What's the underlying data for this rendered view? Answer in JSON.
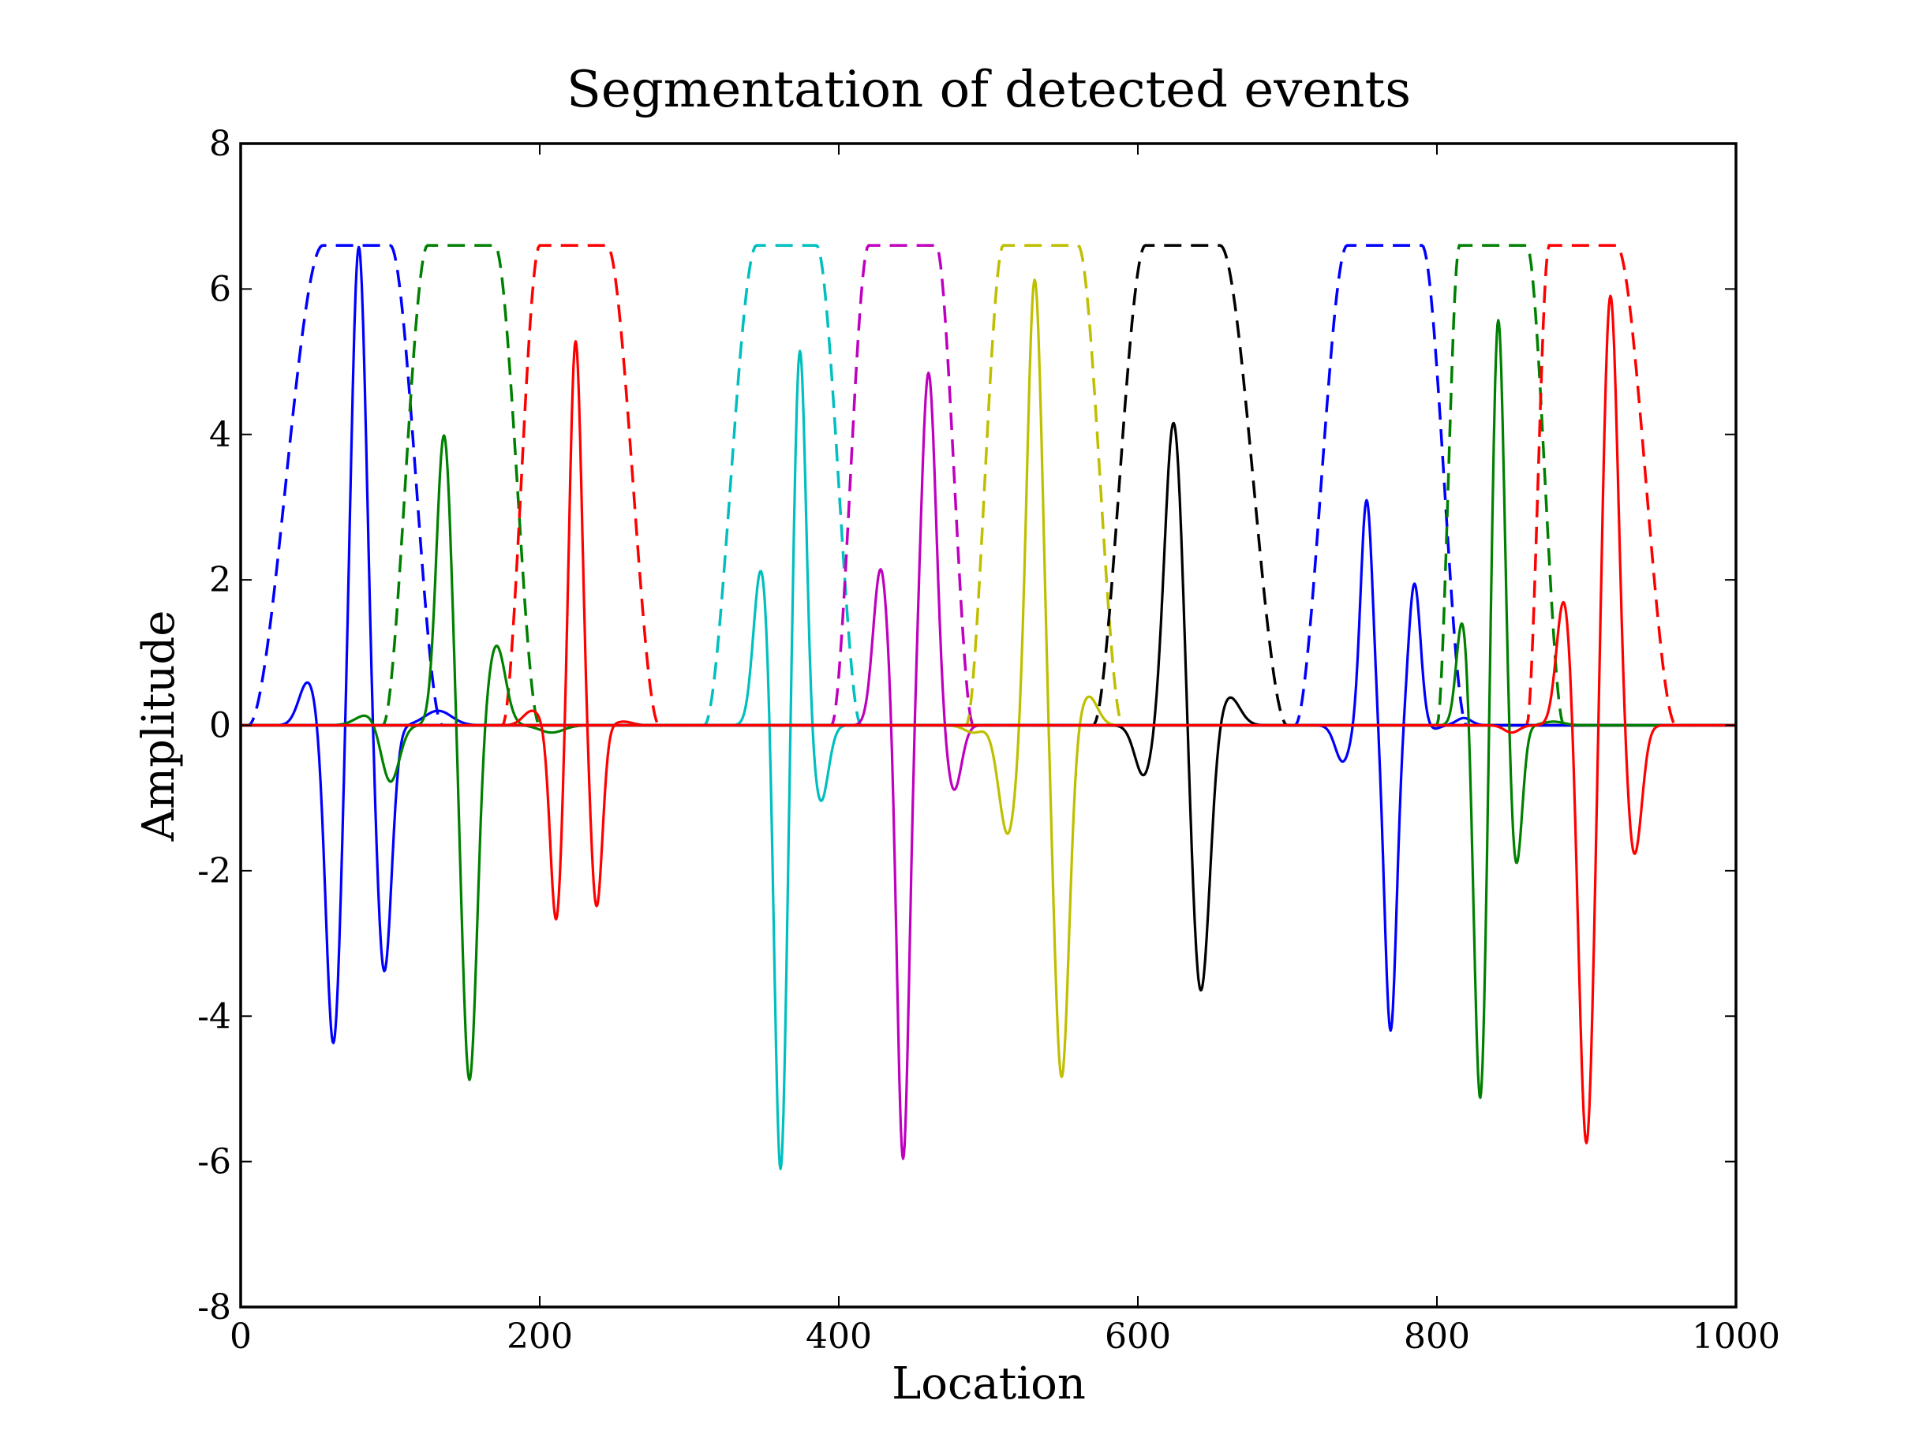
{
  "chart_data": {
    "type": "line",
    "title": "Segmentation of detected events",
    "xlabel": "Location",
    "ylabel": "Amplitude",
    "xlim": [
      0,
      1000
    ],
    "ylim": [
      -8,
      8
    ],
    "xticks": [
      0,
      200,
      400,
      600,
      800,
      1000
    ],
    "yticks": [
      -8,
      -6,
      -4,
      -2,
      0,
      2,
      4,
      6,
      8
    ],
    "xtick_labels": [
      "0",
      "200",
      "400",
      "600",
      "800",
      "1000"
    ],
    "ytick_labels": [
      "-8",
      "-6",
      "-4",
      "-2",
      "0",
      "2",
      "4",
      "6",
      "8"
    ],
    "grid": false,
    "legend": "none",
    "window_height": 6.6,
    "windows": [
      {
        "color": "#0000ff",
        "rise_start": 5,
        "plateau_start": 55,
        "plateau_end": 100,
        "fall_end": 135
      },
      {
        "color": "#008000",
        "rise_start": 95,
        "plateau_start": 125,
        "plateau_end": 170,
        "fall_end": 200
      },
      {
        "color": "#ff0000",
        "rise_start": 175,
        "plateau_start": 200,
        "plateau_end": 245,
        "fall_end": 280
      },
      {
        "color": "#00bfbf",
        "rise_start": 310,
        "plateau_start": 345,
        "plateau_end": 385,
        "fall_end": 415
      },
      {
        "color": "#bf00bf",
        "rise_start": 395,
        "plateau_start": 420,
        "plateau_end": 465,
        "fall_end": 490
      },
      {
        "color": "#bfbf00",
        "rise_start": 485,
        "plateau_start": 510,
        "plateau_end": 560,
        "fall_end": 590
      },
      {
        "color": "#000000",
        "rise_start": 570,
        "plateau_start": 605,
        "plateau_end": 655,
        "fall_end": 700
      },
      {
        "color": "#0000ff",
        "rise_start": 705,
        "plateau_start": 740,
        "plateau_end": 790,
        "fall_end": 820
      },
      {
        "color": "#008000",
        "rise_start": 800,
        "plateau_start": 815,
        "plateau_end": 860,
        "fall_end": 885
      },
      {
        "color": "#ff0000",
        "rise_start": 860,
        "plateau_start": 875,
        "plateau_end": 920,
        "fall_end": 960
      }
    ],
    "events": [
      {
        "color": "#0000ff",
        "peaks": [
          [
            45,
            0.6,
            6
          ],
          [
            62,
            -4.4,
            5
          ],
          [
            79,
            6.6,
            5
          ],
          [
            96,
            -3.4,
            5
          ],
          [
            132,
            0.2,
            9
          ]
        ]
      },
      {
        "color": "#008000",
        "peaks": [
          [
            85,
            0.15,
            8
          ],
          [
            100,
            -0.8,
            6
          ],
          [
            136,
            4.0,
            5
          ],
          [
            153,
            -4.9,
            5
          ],
          [
            171,
            1.1,
            6
          ],
          [
            208,
            -0.1,
            8
          ]
        ]
      },
      {
        "color": "#ff0000",
        "peaks": [
          [
            195,
            0.2,
            6
          ],
          [
            211,
            -2.7,
            4
          ],
          [
            224,
            5.3,
            4
          ],
          [
            238,
            -2.5,
            4
          ],
          [
            256,
            0.05,
            6
          ]
        ]
      },
      {
        "color": "#00bfbf",
        "peaks": [
          [
            348,
            2.15,
            5
          ],
          [
            361,
            -6.2,
            4
          ],
          [
            374,
            5.2,
            4
          ],
          [
            388,
            -1.05,
            5
          ]
        ]
      },
      {
        "color": "#bf00bf",
        "peaks": [
          [
            428,
            2.15,
            5
          ],
          [
            443,
            -6.0,
            4
          ],
          [
            460,
            4.85,
            5
          ],
          [
            477,
            -0.9,
            5
          ]
        ]
      },
      {
        "color": "#bfbf00",
        "peaks": [
          [
            490,
            -0.1,
            6
          ],
          [
            513,
            -1.5,
            6
          ],
          [
            531,
            6.15,
            5
          ],
          [
            549,
            -4.85,
            5
          ],
          [
            567,
            0.4,
            6
          ]
        ]
      },
      {
        "color": "#000000",
        "peaks": [
          [
            604,
            -0.7,
            6
          ],
          [
            624,
            4.2,
            6
          ],
          [
            642,
            -3.7,
            6
          ],
          [
            661,
            0.4,
            7
          ]
        ]
      },
      {
        "color": "#0000ff",
        "peaks": [
          [
            737,
            -0.5,
            5
          ],
          [
            753,
            3.1,
            4
          ],
          [
            769,
            -4.2,
            4
          ],
          [
            785,
            1.95,
            4
          ],
          [
            798,
            -0.05,
            4
          ],
          [
            818,
            0.1,
            5
          ]
        ]
      },
      {
        "color": "#008000",
        "peaks": [
          [
            817,
            1.45,
            4
          ],
          [
            829,
            -5.2,
            4
          ],
          [
            841,
            5.65,
            4
          ],
          [
            853,
            -1.95,
            4
          ],
          [
            878,
            0.05,
            7
          ]
        ]
      },
      {
        "color": "#ff0000",
        "peaks": [
          [
            850,
            -0.1,
            5
          ],
          [
            885,
            1.75,
            5
          ],
          [
            900,
            -5.8,
            5
          ],
          [
            916,
            5.95,
            5
          ],
          [
            932,
            -1.8,
            5
          ]
        ]
      }
    ]
  }
}
